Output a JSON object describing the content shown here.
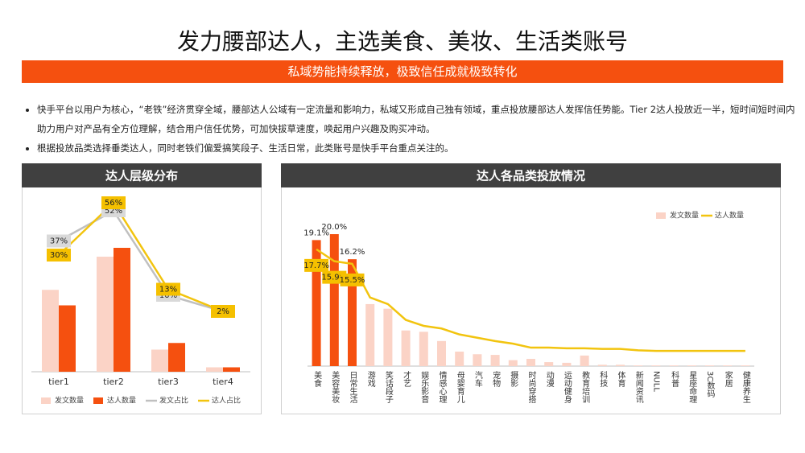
{
  "title": "发力腰部达人，主选美食、美妆、生活类账号",
  "subtitle": "私域势能持续释放，极致信任成就极致转化",
  "bullets": [
    "快手平台以用户为核心，“老铁”经济贯穿全域，腰部达人公域有一定流量和影响力，私域又形成自己独有领域，重点投放腰部达人发挥信任势能。Tier 2达人投放近一半，短时间短时间内助力用户对产品有全方位理解，结合用户信任优势，可加快拔草速度，唤起用户兴趣及购买冲动。",
    "根据投放品类选择垂类达人，同时老铁们偏爱搞笑段子、生活日常，此类账号是快手平台重点关注的。"
  ],
  "chart_data": [
    {
      "type": "combo",
      "title": "达人层级分布",
      "legend": "bottom",
      "categories": [
        "tier1",
        "tier2",
        "tier3",
        "tier4"
      ],
      "series": [
        {
          "name": "发文数量",
          "type": "bar",
          "color": "#fbd3c6",
          "values": [
            37,
            52,
            10,
            2
          ]
        },
        {
          "name": "达人数量",
          "type": "bar",
          "color": "#f5500f",
          "values": [
            30,
            56,
            13,
            2
          ]
        },
        {
          "name": "发文占比",
          "type": "line",
          "axis": "y2",
          "color": "#c0c0c0",
          "label_box": "#d9d9d9",
          "values": [
            37,
            52,
            10,
            2
          ],
          "value_labels": [
            "37%",
            "52%",
            "10%",
            "2%"
          ]
        },
        {
          "name": "达人占比",
          "type": "line",
          "axis": "y2",
          "color": "#f2c40f",
          "label_box": "#f5c000",
          "values": [
            30,
            56,
            13,
            2
          ],
          "value_labels": [
            "30%",
            "56%",
            "13%",
            "2%"
          ]
        }
      ]
    },
    {
      "type": "combo",
      "title": "达人各品类投放情况",
      "legend": "top-right",
      "categories": [
        "美食",
        "美容美妆",
        "日常生活",
        "游戏",
        "笑话段子",
        "才艺",
        "娱乐影音",
        "情感心理",
        "母婴育儿",
        "汽车",
        "宠物",
        "摄影",
        "时尚穿搭",
        "动漫",
        "运动健身",
        "教育培训",
        "科技",
        "体育",
        "新闻资讯",
        "NULL",
        "科普",
        "星座命理",
        "3C数码",
        "家居",
        "健康养生"
      ],
      "series": [
        {
          "name": "发文数量",
          "type": "bar",
          "color": "#fbd3c6",
          "colors": [
            "#f5500f",
            "#f5500f",
            "#f5500f",
            "#fbd3c6",
            "#fbd3c6",
            "#fbd3c6",
            "#fbd3c6",
            "#fbd3c6",
            "#fbd3c6",
            "#fbd3c6",
            "#fbd3c6",
            "#fbd3c6",
            "#fbd3c6",
            "#fbd3c6",
            "#fbd3c6",
            "#fbd3c6",
            "#fbd3c6",
            "#fbd3c6",
            "#fbd3c6",
            "#fbd3c6",
            "#fbd3c6",
            "#fbd3c6",
            "#fbd3c6",
            "#fbd3c6",
            "#fbd3c6"
          ],
          "values": [
            19.1,
            20.0,
            16.2,
            9.4,
            8.7,
            5.4,
            5.2,
            3.8,
            2.2,
            1.8,
            1.7,
            0.9,
            1.1,
            0.6,
            0.5,
            1.6,
            0.2,
            0.2,
            0.1,
            0.1,
            0.1,
            0.1,
            0.1,
            0.1,
            0.1
          ],
          "value_labels": [
            "19.1%",
            "20.0%",
            "16.2%",
            null,
            null,
            null,
            null,
            null,
            null,
            null,
            null,
            null,
            null,
            null,
            null,
            null,
            null,
            null,
            null,
            null,
            null,
            null,
            null,
            null,
            null
          ]
        },
        {
          "name": "达人数量",
          "type": "line",
          "color": "#f2c40f",
          "label_box": "#f5c000",
          "values": [
            17.7,
            15.9,
            15.5,
            10.4,
            9.4,
            7.0,
            6.1,
            5.7,
            4.8,
            4.3,
            3.8,
            3.4,
            2.8,
            2.8,
            2.7,
            2.7,
            2.6,
            2.6,
            2.4,
            2.3,
            2.3,
            2.3,
            2.3,
            2.3,
            2.3
          ],
          "value_labels": [
            "17.7%",
            "15.9%",
            "15.5%",
            null,
            null,
            null,
            null,
            null,
            null,
            null,
            null,
            null,
            null,
            null,
            null,
            null,
            null,
            null,
            null,
            null,
            null,
            null,
            null,
            null,
            null
          ]
        }
      ]
    }
  ]
}
